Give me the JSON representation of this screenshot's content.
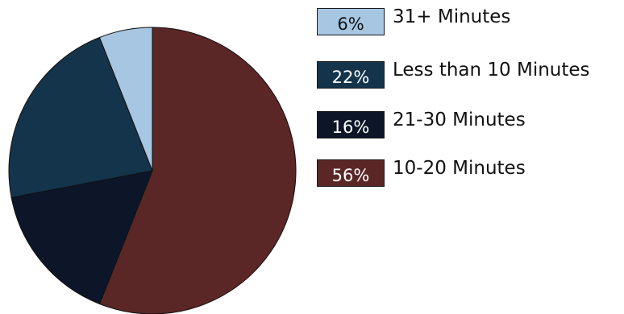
{
  "chart_data": {
    "type": "pie",
    "title": "",
    "slices": [
      {
        "label": "10-20 Minutes",
        "percent_label": "56%",
        "value": 56,
        "color": "#5a2626",
        "text_color": "#ffffff"
      },
      {
        "label": "21-30 Minutes",
        "percent_label": "16%",
        "value": 16,
        "color": "#0c1628",
        "text_color": "#ffffff"
      },
      {
        "label": "Less than 10 Minutes",
        "percent_label": "22%",
        "value": 22,
        "color": "#14344c",
        "text_color": "#ffffff"
      },
      {
        "label": "31+ Minutes",
        "percent_label": "6%",
        "value": 6,
        "color": "#a6c6e2",
        "text_color": "#111111"
      }
    ],
    "legend": [
      {
        "label": "31+ Minutes",
        "percent_label": "6%"
      },
      {
        "label": "Less than 10 Minutes",
        "percent_label": "22%"
      },
      {
        "label": "21-30 Minutes",
        "percent_label": "16%"
      },
      {
        "label": "10-20 Minutes",
        "percent_label": "56%"
      }
    ],
    "legend_position": "right",
    "start_angle": "top, clockwise"
  }
}
